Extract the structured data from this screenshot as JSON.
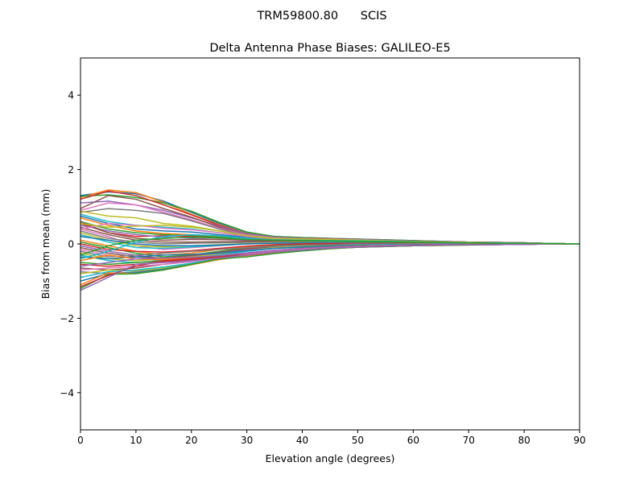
{
  "suptitle": "TRM59800.80      SCIS",
  "chart_data": {
    "type": "line",
    "title": "Delta Antenna Phase Biases: GALILEO-E5",
    "xlabel": "Elevation angle (degrees)",
    "ylabel": "Bias from mean (mm)",
    "xlim": [
      0,
      90
    ],
    "ylim": [
      -5,
      5
    ],
    "xticks": [
      "0",
      "10",
      "20",
      "30",
      "40",
      "50",
      "60",
      "70",
      "80",
      "90"
    ],
    "yticks": [
      "−4",
      "−2",
      "0",
      "2",
      "4"
    ],
    "grid": false,
    "x": [
      0,
      5,
      10,
      15,
      20,
      25,
      30,
      35,
      40,
      45,
      50,
      55,
      60,
      65,
      70,
      75,
      80,
      85,
      90
    ],
    "series": [
      {
        "color": "#1f77b4",
        "values": [
          1.3,
          1.4,
          1.35,
          1.15,
          0.85,
          0.55,
          0.3,
          0.2,
          0.17,
          0.15,
          0.13,
          0.11,
          0.09,
          0.07,
          0.05,
          0.04,
          0.03,
          0.01,
          0.0
        ]
      },
      {
        "color": "#ff7f0e",
        "values": [
          1.25,
          1.45,
          1.38,
          1.12,
          0.8,
          0.52,
          0.28,
          0.18,
          0.16,
          0.14,
          0.12,
          0.1,
          0.08,
          0.06,
          0.05,
          0.04,
          0.03,
          0.01,
          0.0
        ]
      },
      {
        "color": "#2ca02c",
        "values": [
          1.28,
          1.32,
          1.25,
          1.1,
          0.88,
          0.58,
          0.32,
          0.2,
          0.17,
          0.15,
          0.13,
          0.11,
          0.09,
          0.07,
          0.05,
          0.04,
          0.03,
          0.01,
          0.0
        ]
      },
      {
        "color": "#d62728",
        "values": [
          1.2,
          1.42,
          1.3,
          1.05,
          0.78,
          0.5,
          0.27,
          0.17,
          0.15,
          0.14,
          0.12,
          0.1,
          0.08,
          0.06,
          0.05,
          0.04,
          0.03,
          0.01,
          0.0
        ]
      },
      {
        "color": "#9467bd",
        "values": [
          1.1,
          1.15,
          1.05,
          0.9,
          0.7,
          0.48,
          0.27,
          0.18,
          0.15,
          0.13,
          0.12,
          0.1,
          0.08,
          0.06,
          0.05,
          0.04,
          0.03,
          0.01,
          0.0
        ]
      },
      {
        "color": "#8c564b",
        "values": [
          0.95,
          1.3,
          1.2,
          0.95,
          0.72,
          0.45,
          0.25,
          0.16,
          0.14,
          0.13,
          0.11,
          0.09,
          0.08,
          0.06,
          0.05,
          0.04,
          0.03,
          0.01,
          0.0
        ]
      },
      {
        "color": "#e377c2",
        "values": [
          0.9,
          1.1,
          1.05,
          0.85,
          0.65,
          0.42,
          0.24,
          0.16,
          0.14,
          0.13,
          0.11,
          0.09,
          0.07,
          0.06,
          0.04,
          0.03,
          0.03,
          0.01,
          0.0
        ]
      },
      {
        "color": "#7f7f7f",
        "values": [
          0.85,
          0.95,
          0.9,
          0.82,
          0.62,
          0.4,
          0.22,
          0.15,
          0.13,
          0.12,
          0.1,
          0.09,
          0.07,
          0.05,
          0.04,
          0.03,
          0.02,
          0.01,
          0.0
        ]
      },
      {
        "color": "#bcbd22",
        "values": [
          0.88,
          0.75,
          0.7,
          0.55,
          0.48,
          0.35,
          0.22,
          0.15,
          0.13,
          0.12,
          0.1,
          0.08,
          0.07,
          0.05,
          0.04,
          0.03,
          0.02,
          0.01,
          0.0
        ]
      },
      {
        "color": "#17becf",
        "values": [
          0.8,
          0.6,
          0.5,
          0.45,
          0.4,
          0.3,
          0.2,
          0.14,
          0.12,
          0.11,
          0.1,
          0.08,
          0.06,
          0.05,
          0.04,
          0.03,
          0.02,
          0.01,
          0.0
        ]
      },
      {
        "color": "#1f77b4",
        "values": [
          0.75,
          0.55,
          0.4,
          0.35,
          0.32,
          0.25,
          0.18,
          0.13,
          0.12,
          0.1,
          0.09,
          0.08,
          0.06,
          0.05,
          0.04,
          0.03,
          0.02,
          0.01,
          0.0
        ]
      },
      {
        "color": "#ff7f0e",
        "values": [
          0.7,
          0.5,
          0.35,
          0.28,
          0.25,
          0.2,
          0.15,
          0.12,
          0.11,
          0.1,
          0.09,
          0.07,
          0.06,
          0.05,
          0.04,
          0.03,
          0.02,
          0.01,
          0.0
        ]
      },
      {
        "color": "#2ca02c",
        "values": [
          0.6,
          0.4,
          0.3,
          0.25,
          0.22,
          0.18,
          0.14,
          0.11,
          0.1,
          0.09,
          0.08,
          0.07,
          0.06,
          0.04,
          0.03,
          0.03,
          0.02,
          0.01,
          0.0
        ]
      },
      {
        "color": "#d62728",
        "values": [
          0.55,
          0.3,
          0.2,
          0.22,
          0.2,
          0.16,
          0.12,
          0.1,
          0.09,
          0.09,
          0.08,
          0.07,
          0.05,
          0.04,
          0.03,
          0.02,
          0.02,
          0.01,
          0.0
        ]
      },
      {
        "color": "#9467bd",
        "values": [
          0.5,
          0.35,
          0.25,
          0.18,
          0.15,
          0.12,
          0.1,
          0.09,
          0.08,
          0.08,
          0.07,
          0.06,
          0.05,
          0.04,
          0.03,
          0.02,
          0.02,
          0.01,
          0.0
        ]
      },
      {
        "color": "#8c564b",
        "values": [
          0.45,
          0.25,
          0.1,
          0.05,
          0.05,
          0.06,
          0.07,
          0.07,
          0.07,
          0.07,
          0.06,
          0.05,
          0.05,
          0.04,
          0.03,
          0.02,
          0.02,
          0.01,
          0.0
        ]
      },
      {
        "color": "#e377c2",
        "values": [
          0.4,
          0.2,
          -0.05,
          -0.15,
          -0.1,
          -0.05,
          0.0,
          0.03,
          0.05,
          0.05,
          0.05,
          0.04,
          0.04,
          0.03,
          0.02,
          0.02,
          0.01,
          0.01,
          0.0
        ]
      },
      {
        "color": "#7f7f7f",
        "values": [
          0.35,
          0.15,
          0.05,
          0.0,
          0.02,
          0.03,
          0.04,
          0.05,
          0.05,
          0.05,
          0.05,
          0.04,
          0.04,
          0.03,
          0.02,
          0.02,
          0.01,
          0.01,
          0.0
        ]
      },
      {
        "color": "#bcbd22",
        "values": [
          0.3,
          0.1,
          -0.05,
          -0.08,
          -0.05,
          -0.02,
          0.01,
          0.03,
          0.04,
          0.04,
          0.04,
          0.04,
          0.03,
          0.03,
          0.02,
          0.02,
          0.01,
          0.01,
          0.0
        ]
      },
      {
        "color": "#17becf",
        "values": [
          0.25,
          0.05,
          -0.1,
          -0.12,
          -0.08,
          -0.04,
          0.0,
          0.02,
          0.03,
          0.04,
          0.04,
          0.03,
          0.03,
          0.02,
          0.02,
          0.01,
          0.01,
          0.0,
          0.0
        ]
      },
      {
        "color": "#1f77b4",
        "values": [
          0.2,
          0.1,
          0.0,
          -0.05,
          -0.05,
          -0.03,
          0.0,
          0.02,
          0.03,
          0.03,
          0.03,
          0.03,
          0.03,
          0.02,
          0.02,
          0.01,
          0.01,
          0.0,
          0.0
        ]
      },
      {
        "color": "#ff7f0e",
        "values": [
          0.1,
          -0.05,
          -0.2,
          -0.3,
          -0.25,
          -0.15,
          -0.08,
          -0.03,
          0.0,
          0.01,
          0.02,
          0.02,
          0.02,
          0.02,
          0.01,
          0.01,
          0.01,
          0.0,
          0.0
        ]
      },
      {
        "color": "#2ca02c",
        "values": [
          0.05,
          -0.1,
          -0.25,
          -0.35,
          -0.3,
          -0.2,
          -0.1,
          -0.05,
          -0.02,
          0.0,
          0.01,
          0.02,
          0.02,
          0.01,
          0.01,
          0.01,
          0.0,
          0.0,
          0.0
        ]
      },
      {
        "color": "#d62728",
        "values": [
          0.0,
          -0.15,
          -0.2,
          -0.22,
          -0.18,
          -0.12,
          -0.06,
          -0.02,
          0.0,
          0.01,
          0.01,
          0.01,
          0.01,
          0.01,
          0.01,
          0.0,
          0.0,
          0.0,
          0.0
        ]
      },
      {
        "color": "#9467bd",
        "values": [
          -0.05,
          -0.2,
          -0.3,
          -0.4,
          -0.35,
          -0.25,
          -0.15,
          -0.08,
          -0.04,
          -0.02,
          0.0,
          0.0,
          0.01,
          0.01,
          0.0,
          0.0,
          0.0,
          0.0,
          0.0
        ]
      },
      {
        "color": "#8c564b",
        "values": [
          -0.1,
          -0.25,
          -0.35,
          -0.38,
          -0.32,
          -0.22,
          -0.13,
          -0.07,
          -0.04,
          -0.02,
          -0.01,
          0.0,
          0.0,
          0.0,
          0.0,
          0.0,
          0.0,
          0.0,
          0.0
        ]
      },
      {
        "color": "#e377c2",
        "values": [
          -0.15,
          -0.3,
          -0.4,
          -0.45,
          -0.4,
          -0.3,
          -0.18,
          -0.1,
          -0.06,
          -0.03,
          -0.02,
          -0.01,
          -0.01,
          0.0,
          0.0,
          0.0,
          0.0,
          0.0,
          0.0
        ]
      },
      {
        "color": "#7f7f7f",
        "values": [
          -0.2,
          -0.35,
          -0.3,
          -0.25,
          -0.2,
          -0.15,
          -0.1,
          -0.06,
          -0.04,
          -0.03,
          -0.02,
          -0.01,
          -0.01,
          -0.01,
          0.0,
          0.0,
          0.0,
          0.0,
          0.0
        ]
      },
      {
        "color": "#bcbd22",
        "values": [
          -0.25,
          -0.4,
          -0.45,
          -0.4,
          -0.35,
          -0.28,
          -0.18,
          -0.1,
          -0.07,
          -0.04,
          -0.03,
          -0.02,
          -0.01,
          -0.01,
          -0.01,
          0.0,
          0.0,
          0.0,
          0.0
        ]
      },
      {
        "color": "#17becf",
        "values": [
          -0.3,
          -0.45,
          -0.5,
          -0.45,
          -0.38,
          -0.3,
          -0.2,
          -0.12,
          -0.08,
          -0.05,
          -0.03,
          -0.02,
          -0.02,
          -0.01,
          -0.01,
          -0.01,
          0.0,
          0.0,
          0.0
        ]
      },
      {
        "color": "#1f77b4",
        "values": [
          -0.35,
          -0.4,
          -0.35,
          -0.3,
          -0.28,
          -0.25,
          -0.18,
          -0.12,
          -0.08,
          -0.05,
          -0.04,
          -0.03,
          -0.02,
          -0.01,
          -0.01,
          -0.01,
          0.0,
          0.0,
          0.0
        ]
      },
      {
        "color": "#ff7f0e",
        "values": [
          -0.45,
          -0.3,
          -0.4,
          -0.42,
          -0.38,
          -0.32,
          -0.25,
          -0.18,
          -0.12,
          -0.08,
          -0.05,
          -0.04,
          -0.03,
          -0.02,
          -0.01,
          -0.01,
          -0.01,
          0.0,
          0.0
        ]
      },
      {
        "color": "#2ca02c",
        "values": [
          -0.5,
          -0.55,
          -0.5,
          -0.45,
          -0.4,
          -0.33,
          -0.25,
          -0.17,
          -0.11,
          -0.07,
          -0.05,
          -0.04,
          -0.03,
          -0.02,
          -0.02,
          -0.01,
          -0.01,
          0.0,
          0.0
        ]
      },
      {
        "color": "#d62728",
        "values": [
          -0.55,
          -0.6,
          -0.55,
          -0.48,
          -0.42,
          -0.35,
          -0.26,
          -0.18,
          -0.12,
          -0.08,
          -0.06,
          -0.04,
          -0.03,
          -0.02,
          -0.02,
          -0.01,
          -0.01,
          0.0,
          0.0
        ]
      },
      {
        "color": "#9467bd",
        "values": [
          -0.6,
          -0.5,
          -0.4,
          -0.38,
          -0.36,
          -0.32,
          -0.24,
          -0.17,
          -0.12,
          -0.08,
          -0.06,
          -0.04,
          -0.03,
          -0.02,
          -0.02,
          -0.01,
          -0.01,
          0.0,
          0.0
        ]
      },
      {
        "color": "#8c564b",
        "values": [
          -0.65,
          -0.7,
          -0.65,
          -0.55,
          -0.45,
          -0.36,
          -0.28,
          -0.2,
          -0.14,
          -0.1,
          -0.07,
          -0.05,
          -0.04,
          -0.03,
          -0.02,
          -0.01,
          -0.01,
          0.0,
          0.0
        ]
      },
      {
        "color": "#e377c2",
        "values": [
          -0.7,
          -0.65,
          -0.6,
          -0.55,
          -0.48,
          -0.38,
          -0.28,
          -0.2,
          -0.14,
          -0.1,
          -0.07,
          -0.05,
          -0.04,
          -0.03,
          -0.02,
          -0.01,
          -0.01,
          0.0,
          0.0
        ]
      },
      {
        "color": "#7f7f7f",
        "values": [
          -0.75,
          -0.8,
          -0.75,
          -0.65,
          -0.52,
          -0.4,
          -0.3,
          -0.22,
          -0.16,
          -0.11,
          -0.08,
          -0.06,
          -0.04,
          -0.03,
          -0.02,
          -0.02,
          -0.01,
          0.0,
          0.0
        ]
      },
      {
        "color": "#bcbd22",
        "values": [
          -0.8,
          -0.7,
          -0.72,
          -0.65,
          -0.53,
          -0.4,
          -0.3,
          -0.22,
          -0.16,
          -0.11,
          -0.08,
          -0.06,
          -0.04,
          -0.03,
          -0.02,
          -0.02,
          -0.01,
          0.0,
          0.0
        ]
      },
      {
        "color": "#17becf",
        "values": [
          -0.9,
          -0.75,
          -0.7,
          -0.62,
          -0.52,
          -0.4,
          -0.31,
          -0.23,
          -0.17,
          -0.12,
          -0.09,
          -0.06,
          -0.05,
          -0.03,
          -0.02,
          -0.02,
          -0.01,
          0.0,
          0.0
        ]
      },
      {
        "color": "#1f77b4",
        "values": [
          -1.0,
          -0.8,
          -0.78,
          -0.68,
          -0.55,
          -0.42,
          -0.32,
          -0.24,
          -0.17,
          -0.12,
          -0.09,
          -0.07,
          -0.05,
          -0.03,
          -0.02,
          -0.02,
          -0.01,
          0.0,
          0.0
        ]
      },
      {
        "color": "#ff7f0e",
        "values": [
          -1.1,
          -0.78,
          -0.8,
          -0.7,
          -0.56,
          -0.42,
          -0.33,
          -0.25,
          -0.18,
          -0.13,
          -0.09,
          -0.07,
          -0.05,
          -0.04,
          -0.03,
          -0.02,
          -0.01,
          0.0,
          0.0
        ]
      },
      {
        "color": "#2ca02c",
        "values": [
          -1.2,
          -0.82,
          -0.8,
          -0.7,
          -0.55,
          -0.4,
          -0.35,
          -0.26,
          -0.19,
          -0.13,
          -0.09,
          -0.07,
          -0.05,
          -0.04,
          -0.03,
          -0.02,
          -0.01,
          0.0,
          0.0
        ]
      },
      {
        "color": "#d62728",
        "values": [
          -1.15,
          -0.85,
          -0.6,
          -0.45,
          -0.4,
          -0.35,
          -0.3,
          -0.22,
          -0.16,
          -0.11,
          -0.08,
          -0.06,
          -0.04,
          -0.03,
          -0.02,
          -0.02,
          -0.01,
          0.0,
          0.0
        ]
      },
      {
        "color": "#9467bd",
        "values": [
          -1.25,
          -0.9,
          -0.55,
          -0.5,
          -0.45,
          -0.38,
          -0.3,
          -0.22,
          -0.16,
          -0.11,
          -0.08,
          -0.06,
          -0.04,
          -0.03,
          -0.02,
          -0.02,
          -0.01,
          0.0,
          0.0
        ]
      },
      {
        "color": "#8c564b",
        "values": [
          0.6,
          0.3,
          0.15,
          0.1,
          0.12,
          0.12,
          0.11,
          0.09,
          0.08,
          0.08,
          0.07,
          0.06,
          0.05,
          0.04,
          0.03,
          0.02,
          0.02,
          0.01,
          0.0
        ]
      },
      {
        "color": "#e377c2",
        "values": [
          0.4,
          0.55,
          0.5,
          0.42,
          0.38,
          0.3,
          0.2,
          0.14,
          0.12,
          0.11,
          0.1,
          0.08,
          0.06,
          0.05,
          0.04,
          0.03,
          0.02,
          0.01,
          0.0
        ]
      },
      {
        "color": "#bcbd22",
        "values": [
          0.55,
          0.45,
          0.48,
          0.5,
          0.45,
          0.35,
          0.22,
          0.15,
          0.13,
          0.12,
          0.1,
          0.08,
          0.07,
          0.05,
          0.04,
          0.03,
          0.02,
          0.01,
          0.0
        ]
      },
      {
        "color": "#17becf",
        "values": [
          -0.4,
          -0.2,
          0.05,
          0.2,
          0.25,
          0.22,
          0.15,
          0.11,
          0.1,
          0.09,
          0.08,
          0.07,
          0.06,
          0.04,
          0.03,
          0.03,
          0.02,
          0.01,
          0.0
        ]
      },
      {
        "color": "#2ca02c",
        "values": [
          -0.3,
          -0.05,
          0.1,
          0.15,
          0.18,
          0.16,
          0.12,
          0.1,
          0.09,
          0.08,
          0.07,
          0.06,
          0.05,
          0.04,
          0.03,
          0.02,
          0.02,
          0.01,
          0.0
        ]
      }
    ]
  }
}
